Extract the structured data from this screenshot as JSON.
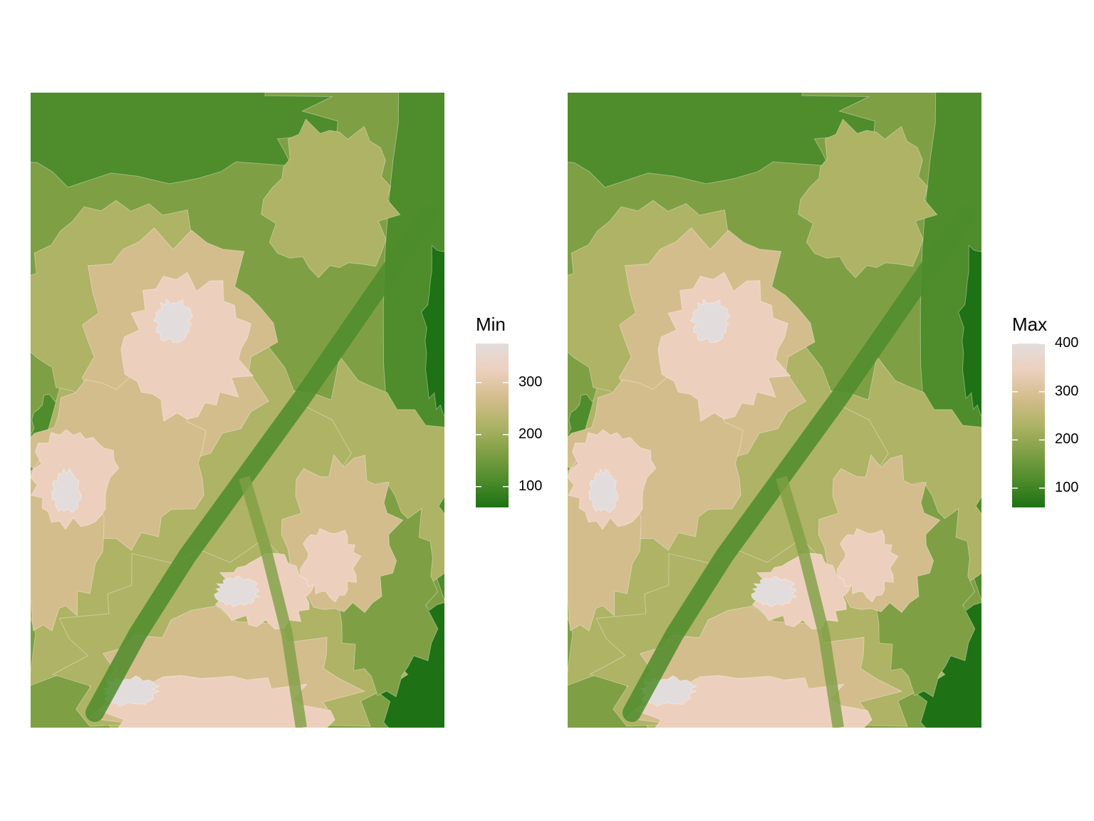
{
  "panels": [
    {
      "legend": {
        "title": "Min",
        "min": 60,
        "max": 375,
        "ticks": [
          {
            "value": 300,
            "label": "300"
          },
          {
            "value": 200,
            "label": "200"
          },
          {
            "value": 100,
            "label": "100"
          }
        ]
      }
    },
    {
      "legend": {
        "title": "Max",
        "min": 60,
        "max": 400,
        "ticks": [
          {
            "value": 400,
            "label": "400"
          },
          {
            "value": 300,
            "label": "300"
          },
          {
            "value": 200,
            "label": "200"
          },
          {
            "value": 100,
            "label": "100"
          }
        ]
      }
    }
  ],
  "colors": {
    "ramp": [
      "#1e7114",
      "#4e8c2c",
      "#7f9f45",
      "#aeb365",
      "#d3bd8c",
      "#ecd0bd",
      "#e3dcdc"
    ],
    "contour_line": "#ffffff"
  }
}
